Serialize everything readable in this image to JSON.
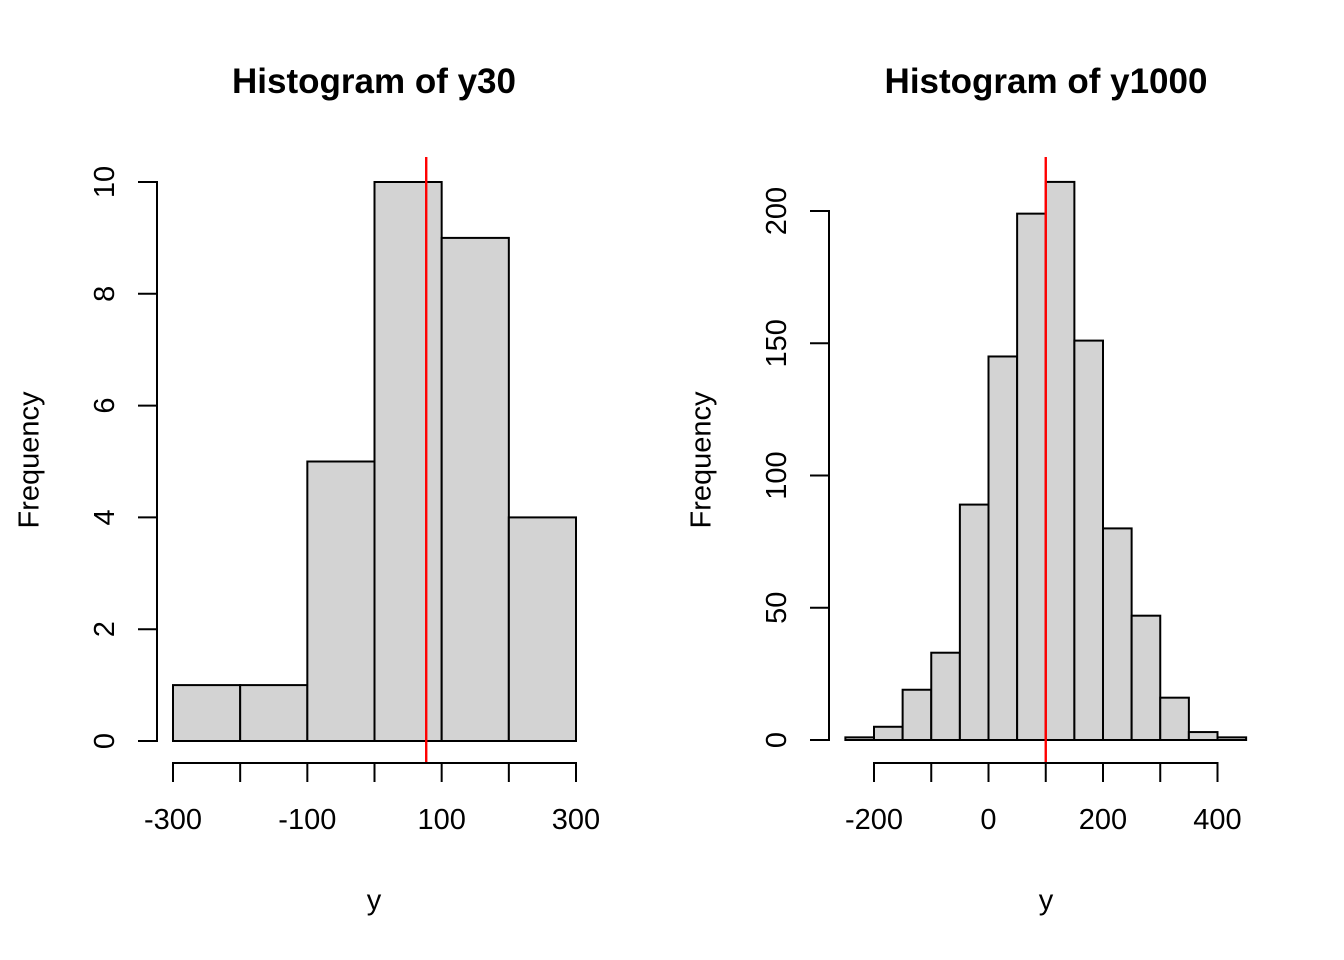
{
  "figure": {
    "background": "#ffffff",
    "colors": {
      "bar_fill": "#d3d3d3",
      "bar_border": "#000000",
      "axis": "#000000",
      "text": "#000000",
      "mean_line": "#ff0000"
    }
  },
  "chart_data": [
    {
      "type": "bar",
      "subtype": "histogram",
      "title": "Histogram of y30",
      "xlabel": "y",
      "ylabel": "Frequency",
      "bins": {
        "start": -300,
        "width": 100
      },
      "counts": [
        1,
        1,
        5,
        10,
        9,
        4
      ],
      "x_ticks": [
        -300,
        -200,
        -100,
        0,
        100,
        200,
        300
      ],
      "x_labeled_ticks": [
        -300,
        -100,
        100,
        300
      ],
      "y_ticks": [
        0,
        2,
        4,
        6,
        8,
        10
      ],
      "xlim": [
        -300,
        300
      ],
      "ylim": [
        0,
        10
      ],
      "grid": "off",
      "legend": "none",
      "mean_line_x": 77
    },
    {
      "type": "bar",
      "subtype": "histogram",
      "title": "Histogram of y1000",
      "xlabel": "y",
      "ylabel": "Frequency",
      "bins": {
        "start": -250,
        "width": 50
      },
      "counts": [
        1,
        5,
        19,
        33,
        89,
        145,
        199,
        211,
        151,
        80,
        47,
        16,
        3,
        1
      ],
      "x_ticks": [
        -200,
        -100,
        0,
        100,
        200,
        300,
        400
      ],
      "x_labeled_ticks": [
        -200,
        0,
        200,
        400
      ],
      "y_ticks": [
        0,
        50,
        100,
        150,
        200
      ],
      "xlim": [
        -250,
        450
      ],
      "ylim": [
        0,
        212
      ],
      "grid": "off",
      "legend": "none",
      "mean_line_x": 100
    }
  ]
}
